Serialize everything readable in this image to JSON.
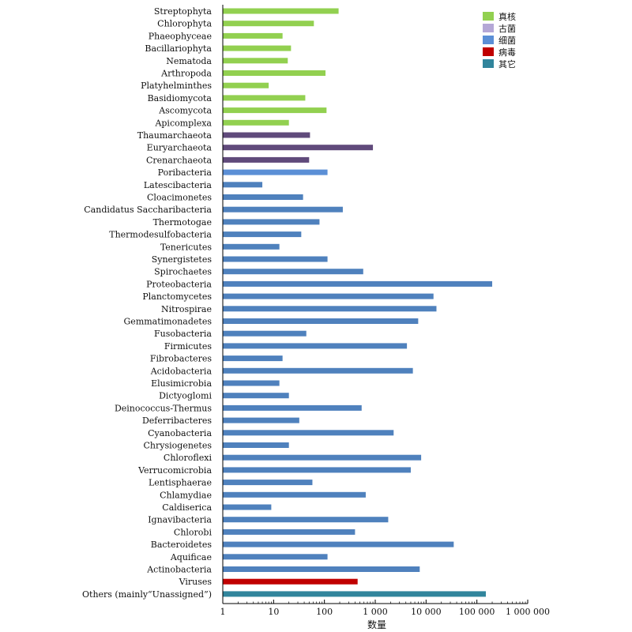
{
  "chart_data": {
    "type": "bar",
    "orientation": "horizontal",
    "xscale": "log",
    "xlim": [
      1,
      1000000
    ],
    "xlabel": "数量",
    "ylabel": "",
    "grid": false,
    "legend_position": "top-right",
    "x_ticks": [
      {
        "value": 1,
        "label": "1"
      },
      {
        "value": 10,
        "label": "10"
      },
      {
        "value": 100,
        "label": "100"
      },
      {
        "value": 1000,
        "label": "1 000"
      },
      {
        "value": 10000,
        "label": "10 000"
      },
      {
        "value": 100000,
        "label": "100 000"
      },
      {
        "value": 1000000,
        "label": "1 000 000"
      }
    ],
    "legend": [
      {
        "label": "真核",
        "color": "#92d050"
      },
      {
        "label": "古菌",
        "color": "#b4a7d6"
      },
      {
        "label": "细菌",
        "color": "#5b8fd6"
      },
      {
        "label": "病毒",
        "color": "#c00000"
      },
      {
        "label": "其它",
        "color": "#31859c"
      }
    ],
    "bars": [
      {
        "category": "Streptophyta",
        "value": 190,
        "color": "#92d050"
      },
      {
        "category": "Chlorophyta",
        "value": 62,
        "color": "#92d050"
      },
      {
        "category": "Phaeophyceae",
        "value": 15,
        "color": "#92d050"
      },
      {
        "category": "Bacillariophyta",
        "value": 22,
        "color": "#92d050"
      },
      {
        "category": "Nematoda",
        "value": 19,
        "color": "#92d050"
      },
      {
        "category": "Arthropoda",
        "value": 105,
        "color": "#92d050"
      },
      {
        "category": "Platyhelminthes",
        "value": 8,
        "color": "#92d050"
      },
      {
        "category": "Basidiomycota",
        "value": 42,
        "color": "#92d050"
      },
      {
        "category": "Ascomycota",
        "value": 110,
        "color": "#92d050"
      },
      {
        "category": "Apicomplexa",
        "value": 20,
        "color": "#92d050"
      },
      {
        "category": "Thaumarchaeota",
        "value": 52,
        "color": "#604a7b"
      },
      {
        "category": "Euryarchaeota",
        "value": 900,
        "color": "#604a7b"
      },
      {
        "category": "Crenarchaeota",
        "value": 50,
        "color": "#604a7b"
      },
      {
        "category": "Poribacteria",
        "value": 115,
        "color": "#5b8fd6"
      },
      {
        "category": "Latescibacteria",
        "value": 6,
        "color": "#4f81bd"
      },
      {
        "category": "Cloacimonetes",
        "value": 38,
        "color": "#4f81bd"
      },
      {
        "category": "Candidatus Saccharibacteria",
        "value": 230,
        "color": "#4f81bd"
      },
      {
        "category": "Thermotogae",
        "value": 80,
        "color": "#4f81bd"
      },
      {
        "category": "Thermodesulfobacteria",
        "value": 35,
        "color": "#4f81bd"
      },
      {
        "category": "Tenericutes",
        "value": 13,
        "color": "#4f81bd"
      },
      {
        "category": "Synergistetes",
        "value": 115,
        "color": "#4f81bd"
      },
      {
        "category": "Spirochaetes",
        "value": 580,
        "color": "#4f81bd"
      },
      {
        "category": "Proteobacteria",
        "value": 200000,
        "color": "#4f81bd"
      },
      {
        "category": "Planctomycetes",
        "value": 14000,
        "color": "#4f81bd"
      },
      {
        "category": "Nitrospirae",
        "value": 16000,
        "color": "#4f81bd"
      },
      {
        "category": "Gemmatimonadetes",
        "value": 7000,
        "color": "#4f81bd"
      },
      {
        "category": "Fusobacteria",
        "value": 44,
        "color": "#4f81bd"
      },
      {
        "category": "Firmicutes",
        "value": 4200,
        "color": "#4f81bd"
      },
      {
        "category": "Fibrobacteres",
        "value": 15,
        "color": "#4f81bd"
      },
      {
        "category": "Acidobacteria",
        "value": 5500,
        "color": "#4f81bd"
      },
      {
        "category": "Elusimicrobia",
        "value": 13,
        "color": "#4f81bd"
      },
      {
        "category": "Dictyoglomi",
        "value": 20,
        "color": "#4f81bd"
      },
      {
        "category": "Deinococcus-Thermus",
        "value": 540,
        "color": "#4f81bd"
      },
      {
        "category": "Deferribacteres",
        "value": 32,
        "color": "#4f81bd"
      },
      {
        "category": "Cyanobacteria",
        "value": 2300,
        "color": "#4f81bd"
      },
      {
        "category": "Chrysiogenetes",
        "value": 20,
        "color": "#4f81bd"
      },
      {
        "category": "Chloroflexi",
        "value": 8000,
        "color": "#4f81bd"
      },
      {
        "category": "Verrucomicrobia",
        "value": 5000,
        "color": "#4f81bd"
      },
      {
        "category": "Lentisphaerae",
        "value": 58,
        "color": "#4f81bd"
      },
      {
        "category": "Chlamydiae",
        "value": 650,
        "color": "#4f81bd"
      },
      {
        "category": "Caldiserica",
        "value": 9,
        "color": "#4f81bd"
      },
      {
        "category": "Ignavibacteria",
        "value": 1800,
        "color": "#4f81bd"
      },
      {
        "category": "Chlorobi",
        "value": 400,
        "color": "#4f81bd"
      },
      {
        "category": "Bacteroidetes",
        "value": 35000,
        "color": "#4f81bd"
      },
      {
        "category": "Aquificae",
        "value": 115,
        "color": "#4f81bd"
      },
      {
        "category": "Actinobacteria",
        "value": 7500,
        "color": "#4f81bd"
      },
      {
        "category": "Viruses",
        "value": 450,
        "color": "#c00000"
      },
      {
        "category": "Others (mainly“Unassigned”)",
        "value": 150000,
        "color": "#31859c"
      }
    ]
  }
}
